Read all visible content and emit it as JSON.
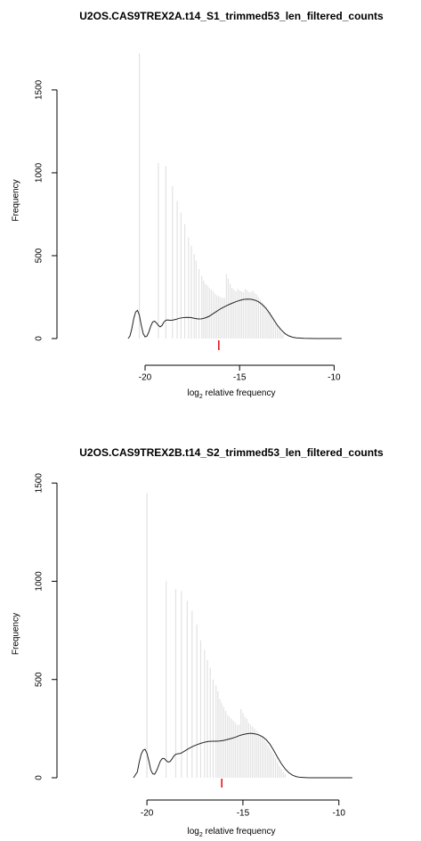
{
  "chart_data": [
    {
      "type": "histogram",
      "title": "U2OS.CAS9TREX2A.t14_S1_trimmed53_len_filtered_counts",
      "xlabel_prefix": "log",
      "xlabel_sub": "2",
      "xlabel_suffix": " relative frequency",
      "ylabel": "Frequency",
      "xlim": [
        -20.8,
        -9.5
      ],
      "ylim": [
        0,
        1720
      ],
      "xticks": [
        -20,
        -15,
        -10
      ],
      "xtick_labels": [
        "-20",
        "-15",
        "-10"
      ],
      "yticks": [
        0,
        500,
        1000,
        1500
      ],
      "ytick_labels": [
        "0",
        "500",
        "1000",
        "1500"
      ],
      "marker_x": -16.1,
      "bars": [
        [
          -20.3,
          1720
        ],
        [
          -19.3,
          1060
        ],
        [
          -18.9,
          1040
        ],
        [
          -18.55,
          920
        ],
        [
          -18.3,
          830
        ],
        [
          -18.1,
          760
        ],
        [
          -17.9,
          690
        ],
        [
          -17.7,
          610
        ],
        [
          -17.55,
          560
        ],
        [
          -17.4,
          510
        ],
        [
          -17.3,
          470
        ],
        [
          -17.15,
          420
        ],
        [
          -17.0,
          380
        ],
        [
          -16.9,
          350
        ],
        [
          -16.8,
          330
        ],
        [
          -16.7,
          320
        ],
        [
          -16.6,
          305
        ],
        [
          -16.5,
          295
        ],
        [
          -16.4,
          285
        ],
        [
          -16.3,
          270
        ],
        [
          -16.2,
          260
        ],
        [
          -16.1,
          255
        ],
        [
          -16.0,
          250
        ],
        [
          -15.9,
          245
        ],
        [
          -15.8,
          245
        ],
        [
          -15.7,
          390
        ],
        [
          -15.6,
          360
        ],
        [
          -15.5,
          330
        ],
        [
          -15.4,
          305
        ],
        [
          -15.3,
          295
        ],
        [
          -15.2,
          285
        ],
        [
          -15.1,
          300
        ],
        [
          -15.0,
          290
        ],
        [
          -14.9,
          285
        ],
        [
          -14.8,
          280
        ],
        [
          -14.7,
          300
        ],
        [
          -14.6,
          290
        ],
        [
          -14.5,
          280
        ],
        [
          -14.4,
          280
        ],
        [
          -14.3,
          290
        ],
        [
          -14.2,
          275
        ],
        [
          -14.1,
          265
        ],
        [
          -14.0,
          250
        ],
        [
          -13.9,
          235
        ],
        [
          -13.8,
          220
        ],
        [
          -13.7,
          205
        ],
        [
          -13.6,
          190
        ],
        [
          -13.5,
          175
        ],
        [
          -13.4,
          160
        ],
        [
          -13.3,
          140
        ],
        [
          -13.2,
          120
        ],
        [
          -13.1,
          100
        ],
        [
          -13.0,
          80
        ],
        [
          -12.9,
          60
        ],
        [
          -12.8,
          40
        ],
        [
          -12.7,
          25
        ]
      ],
      "density": [
        [
          -20.9,
          0
        ],
        [
          -20.8,
          15
        ],
        [
          -20.7,
          60
        ],
        [
          -20.6,
          120
        ],
        [
          -20.5,
          160
        ],
        [
          -20.4,
          170
        ],
        [
          -20.3,
          140
        ],
        [
          -20.2,
          80
        ],
        [
          -20.1,
          30
        ],
        [
          -20.0,
          10
        ],
        [
          -19.9,
          15
        ],
        [
          -19.8,
          40
        ],
        [
          -19.7,
          75
        ],
        [
          -19.6,
          100
        ],
        [
          -19.5,
          105
        ],
        [
          -19.4,
          95
        ],
        [
          -19.3,
          80
        ],
        [
          -19.2,
          70
        ],
        [
          -19.1,
          80
        ],
        [
          -19.0,
          100
        ],
        [
          -18.9,
          110
        ],
        [
          -18.8,
          112
        ],
        [
          -18.7,
          110
        ],
        [
          -18.6,
          110
        ],
        [
          -18.5,
          112
        ],
        [
          -18.4,
          115
        ],
        [
          -18.3,
          118
        ],
        [
          -18.2,
          122
        ],
        [
          -18.0,
          126
        ],
        [
          -17.8,
          128
        ],
        [
          -17.6,
          127
        ],
        [
          -17.4,
          122
        ],
        [
          -17.2,
          118
        ],
        [
          -17.0,
          119
        ],
        [
          -16.8,
          125
        ],
        [
          -16.6,
          135
        ],
        [
          -16.4,
          150
        ],
        [
          -16.2,
          165
        ],
        [
          -16.0,
          180
        ],
        [
          -15.8,
          192
        ],
        [
          -15.6,
          203
        ],
        [
          -15.4,
          213
        ],
        [
          -15.2,
          222
        ],
        [
          -15.0,
          230
        ],
        [
          -14.8,
          236
        ],
        [
          -14.6,
          238
        ],
        [
          -14.4,
          237
        ],
        [
          -14.2,
          232
        ],
        [
          -14.0,
          222
        ],
        [
          -13.8,
          205
        ],
        [
          -13.6,
          182
        ],
        [
          -13.4,
          150
        ],
        [
          -13.2,
          115
        ],
        [
          -13.0,
          80
        ],
        [
          -12.8,
          52
        ],
        [
          -12.6,
          30
        ],
        [
          -12.4,
          16
        ],
        [
          -12.2,
          8
        ],
        [
          -12.0,
          4
        ],
        [
          -11.6,
          1
        ],
        [
          -11.0,
          0
        ],
        [
          -10.0,
          0
        ],
        [
          -9.6,
          0
        ]
      ]
    },
    {
      "type": "histogram",
      "title": "U2OS.CAS9TREX2B.t14_S2_trimmed53_len_filtered_counts",
      "xlabel_prefix": "log",
      "xlabel_sub": "2",
      "xlabel_suffix": " relative frequency",
      "ylabel": "Frequency",
      "xlim": [
        -20.7,
        -9.2
      ],
      "ylim": [
        0,
        1510
      ],
      "xticks": [
        -20,
        -15,
        -10
      ],
      "xtick_labels": [
        "-20",
        "-15",
        "-10"
      ],
      "yticks": [
        0,
        500,
        1000,
        1500
      ],
      "ytick_labels": [
        "0",
        "500",
        "1000",
        "1500"
      ],
      "marker_x": -16.1,
      "bars": [
        [
          -20.0,
          1450
        ],
        [
          -19.0,
          1000
        ],
        [
          -18.5,
          960
        ],
        [
          -18.2,
          950
        ],
        [
          -17.9,
          900
        ],
        [
          -17.65,
          850
        ],
        [
          -17.4,
          780
        ],
        [
          -17.2,
          700
        ],
        [
          -17.0,
          650
        ],
        [
          -16.85,
          600
        ],
        [
          -16.7,
          560
        ],
        [
          -16.55,
          500
        ],
        [
          -16.4,
          470
        ],
        [
          -16.3,
          440
        ],
        [
          -16.2,
          400
        ],
        [
          -16.1,
          380
        ],
        [
          -16.0,
          360
        ],
        [
          -15.9,
          340
        ],
        [
          -15.8,
          320
        ],
        [
          -15.7,
          310
        ],
        [
          -15.6,
          300
        ],
        [
          -15.5,
          290
        ],
        [
          -15.4,
          280
        ],
        [
          -15.3,
          270
        ],
        [
          -15.2,
          270
        ],
        [
          -15.1,
          350
        ],
        [
          -15.0,
          330
        ],
        [
          -14.9,
          310
        ],
        [
          -14.8,
          300
        ],
        [
          -14.7,
          280
        ],
        [
          -14.6,
          270
        ],
        [
          -14.5,
          260
        ],
        [
          -14.4,
          250
        ],
        [
          -14.3,
          240
        ],
        [
          -14.2,
          230
        ],
        [
          -14.1,
          220
        ],
        [
          -14.0,
          210
        ],
        [
          -13.9,
          195
        ],
        [
          -13.8,
          180
        ],
        [
          -13.7,
          165
        ],
        [
          -13.6,
          150
        ],
        [
          -13.5,
          135
        ],
        [
          -13.4,
          120
        ],
        [
          -13.3,
          100
        ],
        [
          -13.2,
          80
        ],
        [
          -13.1,
          60
        ],
        [
          -13.0,
          45
        ],
        [
          -12.9,
          30
        ],
        [
          -12.8,
          20
        ]
      ],
      "density": [
        [
          -20.7,
          0
        ],
        [
          -20.5,
          30
        ],
        [
          -20.4,
          80
        ],
        [
          -20.3,
          120
        ],
        [
          -20.2,
          140
        ],
        [
          -20.1,
          145
        ],
        [
          -20.0,
          125
        ],
        [
          -19.9,
          85
        ],
        [
          -19.8,
          40
        ],
        [
          -19.7,
          20
        ],
        [
          -19.6,
          18
        ],
        [
          -19.5,
          35
        ],
        [
          -19.4,
          60
        ],
        [
          -19.3,
          85
        ],
        [
          -19.2,
          98
        ],
        [
          -19.1,
          98
        ],
        [
          -19.0,
          88
        ],
        [
          -18.9,
          80
        ],
        [
          -18.8,
          82
        ],
        [
          -18.7,
          95
        ],
        [
          -18.6,
          110
        ],
        [
          -18.5,
          120
        ],
        [
          -18.4,
          122
        ],
        [
          -18.3,
          123
        ],
        [
          -18.2,
          126
        ],
        [
          -18.0,
          138
        ],
        [
          -17.8,
          150
        ],
        [
          -17.6,
          160
        ],
        [
          -17.4,
          168
        ],
        [
          -17.2,
          175
        ],
        [
          -17.0,
          181
        ],
        [
          -16.8,
          185
        ],
        [
          -16.6,
          186
        ],
        [
          -16.4,
          186
        ],
        [
          -16.2,
          187
        ],
        [
          -16.0,
          190
        ],
        [
          -15.8,
          195
        ],
        [
          -15.6,
          200
        ],
        [
          -15.4,
          206
        ],
        [
          -15.2,
          214
        ],
        [
          -15.0,
          220
        ],
        [
          -14.8,
          224
        ],
        [
          -14.6,
          226
        ],
        [
          -14.4,
          224
        ],
        [
          -14.2,
          219
        ],
        [
          -14.0,
          210
        ],
        [
          -13.8,
          195
        ],
        [
          -13.6,
          172
        ],
        [
          -13.4,
          140
        ],
        [
          -13.2,
          105
        ],
        [
          -13.0,
          72
        ],
        [
          -12.8,
          45
        ],
        [
          -12.6,
          25
        ],
        [
          -12.4,
          12
        ],
        [
          -12.2,
          5
        ],
        [
          -12.0,
          2
        ],
        [
          -11.6,
          0
        ],
        [
          -10.0,
          0
        ],
        [
          -9.3,
          0
        ]
      ]
    }
  ]
}
